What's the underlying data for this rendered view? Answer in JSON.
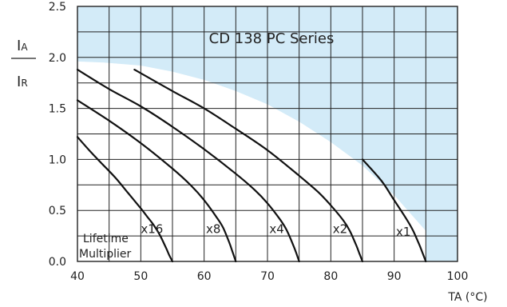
{
  "chart_data": {
    "type": "line",
    "title": "CD 138 PC Series",
    "ylabel_top": "I",
    "ylabel_top_sub": "A",
    "ylabel_bottom": "I",
    "ylabel_bottom_sub": "R",
    "xlabel": "TA (°C)",
    "xlim": [
      40,
      100
    ],
    "ylim": [
      0,
      2.5
    ],
    "x_ticks": [
      "40",
      "50",
      "60",
      "70",
      "80",
      "90",
      "100"
    ],
    "y_ticks": [
      "0.0",
      "0.5",
      "1.0",
      "1.5",
      "2.0",
      "2.5"
    ],
    "grid": true,
    "colors": {
      "forbidden": "#d3ebf8",
      "curve": "#111111",
      "grid": "#222222"
    },
    "boundary": {
      "x": [
        40,
        44,
        50,
        55,
        60,
        65,
        70,
        75,
        80,
        85,
        90,
        95,
        95
      ],
      "y": [
        1.96,
        1.95,
        1.92,
        1.86,
        1.78,
        1.67,
        1.54,
        1.37,
        1.17,
        0.94,
        0.65,
        0.3,
        0
      ]
    },
    "series": [
      {
        "name": "x16",
        "x": [
          40,
          42,
          44,
          46,
          48,
          50,
          51,
          52,
          53,
          54,
          54.5,
          55
        ],
        "y": [
          1.22,
          1.08,
          0.95,
          0.82,
          0.67,
          0.52,
          0.44,
          0.36,
          0.26,
          0.13,
          0.06,
          0
        ]
      },
      {
        "name": "x8",
        "x": [
          40,
          45,
          50,
          55,
          58,
          60,
          62,
          63,
          64,
          64.5,
          65
        ],
        "y": [
          1.58,
          1.38,
          1.16,
          0.91,
          0.74,
          0.6,
          0.43,
          0.33,
          0.18,
          0.09,
          0
        ]
      },
      {
        "name": "x4",
        "x": [
          40,
          45,
          50,
          55,
          60,
          65,
          68,
          70,
          72,
          73,
          74,
          74.5,
          75
        ],
        "y": [
          1.88,
          1.69,
          1.52,
          1.32,
          1.1,
          0.86,
          0.7,
          0.57,
          0.41,
          0.31,
          0.17,
          0.09,
          0
        ]
      },
      {
        "name": "x2",
        "x": [
          49,
          55,
          60,
          65,
          70,
          75,
          78,
          80,
          82,
          83,
          84,
          84.5,
          85
        ],
        "y": [
          1.88,
          1.67,
          1.5,
          1.3,
          1.09,
          0.84,
          0.68,
          0.55,
          0.4,
          0.3,
          0.16,
          0.08,
          0
        ]
      },
      {
        "name": "x1",
        "x": [
          85,
          88,
          90,
          92,
          93,
          94,
          94.5,
          95
        ],
        "y": [
          1.0,
          0.79,
          0.6,
          0.41,
          0.3,
          0.16,
          0.08,
          0
        ]
      }
    ],
    "annotations": [
      {
        "text": "x16",
        "x": 50.0,
        "y": 0.28
      },
      {
        "text": "x8",
        "x": 60.3,
        "y": 0.28
      },
      {
        "text": "x4",
        "x": 70.3,
        "y": 0.28
      },
      {
        "text": "x2",
        "x": 80.3,
        "y": 0.28
      },
      {
        "text": "x1",
        "x": 90.3,
        "y": 0.25
      }
    ],
    "corner_label": [
      "Lifetime",
      "Multiplier"
    ]
  }
}
